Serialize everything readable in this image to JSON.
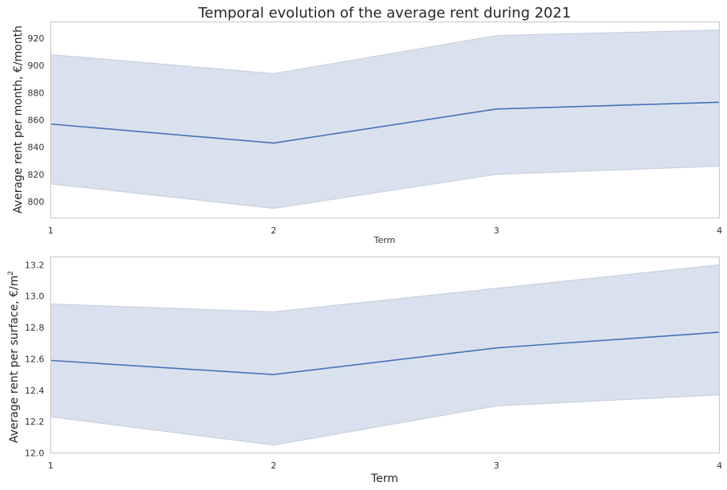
{
  "chart_data": [
    {
      "type": "line",
      "title": "Temporal evolution of the average rent during 2021",
      "xlabel": "Term",
      "ylabel": "Average rent per month, €/month",
      "x": [
        1,
        2,
        3,
        4
      ],
      "x_ticks": [
        "1",
        "2",
        "3",
        "4"
      ],
      "ylim": [
        788,
        932
      ],
      "y_ticks": [
        "800",
        "820",
        "840",
        "860",
        "880",
        "900",
        "920"
      ],
      "y_tick_values": [
        800,
        820,
        840,
        860,
        880,
        900,
        920
      ],
      "grid": false,
      "series": [
        {
          "values": [
            857,
            843,
            868,
            873
          ],
          "ci_low": [
            813,
            795,
            820,
            826
          ],
          "ci_high": [
            908,
            894,
            922,
            926
          ]
        }
      ],
      "colors": {
        "line": "#4472b8",
        "band": "#dae1ee"
      }
    },
    {
      "type": "line",
      "title": "",
      "xlabel": "Term",
      "ylabel_main": "Average rent per surface, €/m",
      "ylabel_sup": "2",
      "x": [
        1,
        2,
        3,
        4
      ],
      "x_ticks": [
        "1",
        "2",
        "3",
        "4"
      ],
      "ylim": [
        12.0,
        13.25
      ],
      "y_ticks": [
        "12.0",
        "12.2",
        "12.4",
        "12.6",
        "12.8",
        "13.0",
        "13.2"
      ],
      "y_tick_values": [
        12.0,
        12.2,
        12.4,
        12.6,
        12.8,
        13.0,
        13.2
      ],
      "grid": false,
      "series": [
        {
          "values": [
            12.59,
            12.5,
            12.67,
            12.77
          ],
          "ci_low": [
            12.23,
            12.05,
            12.3,
            12.37
          ],
          "ci_high": [
            12.95,
            12.9,
            13.05,
            13.2
          ]
        }
      ],
      "colors": {
        "line": "#4472b8",
        "band": "#dae1ee"
      }
    }
  ]
}
